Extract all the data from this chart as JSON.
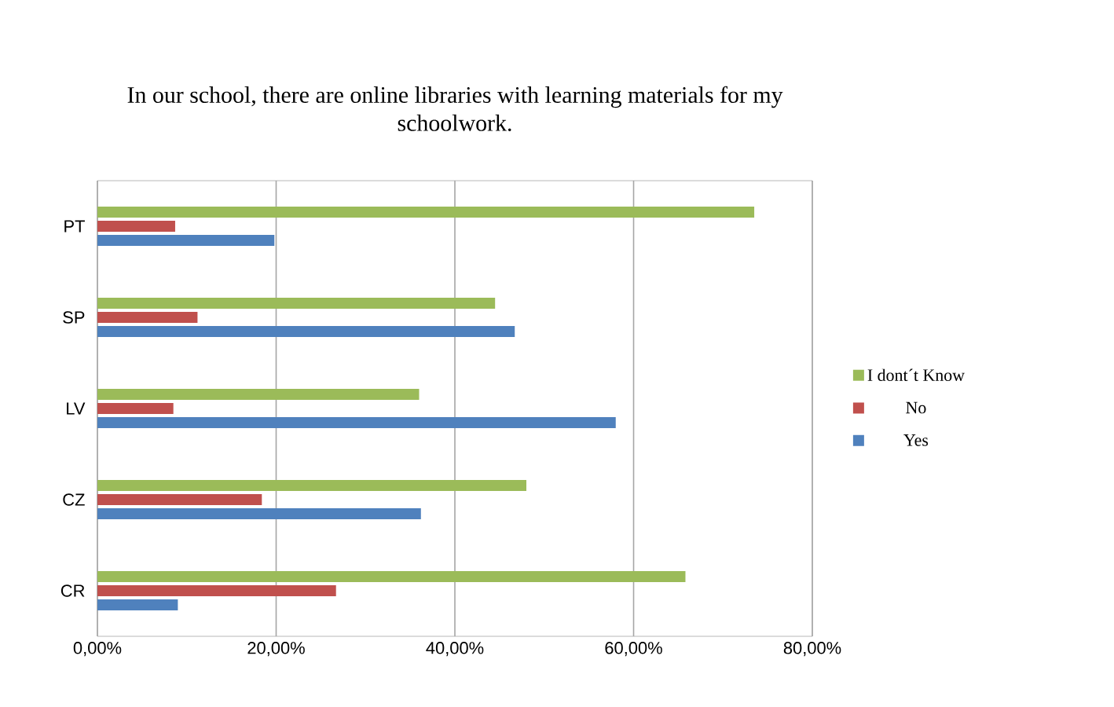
{
  "chart_data": {
    "type": "bar",
    "orientation": "horizontal",
    "title": "In our school, there are online libraries with learning materials for my schoolwork.",
    "categories": [
      "PT",
      "SP",
      "LV",
      "CZ",
      "CR"
    ],
    "series": [
      {
        "name": "Yes",
        "color": "#4f81bd",
        "values": [
          0.198,
          0.467,
          0.58,
          0.362,
          0.09
        ]
      },
      {
        "name": "No",
        "color": "#c0504d",
        "values": [
          0.087,
          0.112,
          0.085,
          0.184,
          0.267
        ]
      },
      {
        "name": "I dont´t Know",
        "color": "#9bbb59",
        "values": [
          0.735,
          0.445,
          0.36,
          0.48,
          0.658
        ]
      }
    ],
    "xlim": [
      0,
      0.8
    ],
    "xticks": [
      {
        "value": 0,
        "label": "0,00%"
      },
      {
        "value": 0.2,
        "label": "20,00%"
      },
      {
        "value": 0.4,
        "label": "40,00%"
      },
      {
        "value": 0.6,
        "label": "60,00%"
      },
      {
        "value": 0.8,
        "label": "80,00%"
      }
    ],
    "grid": "x",
    "legend": "right"
  }
}
